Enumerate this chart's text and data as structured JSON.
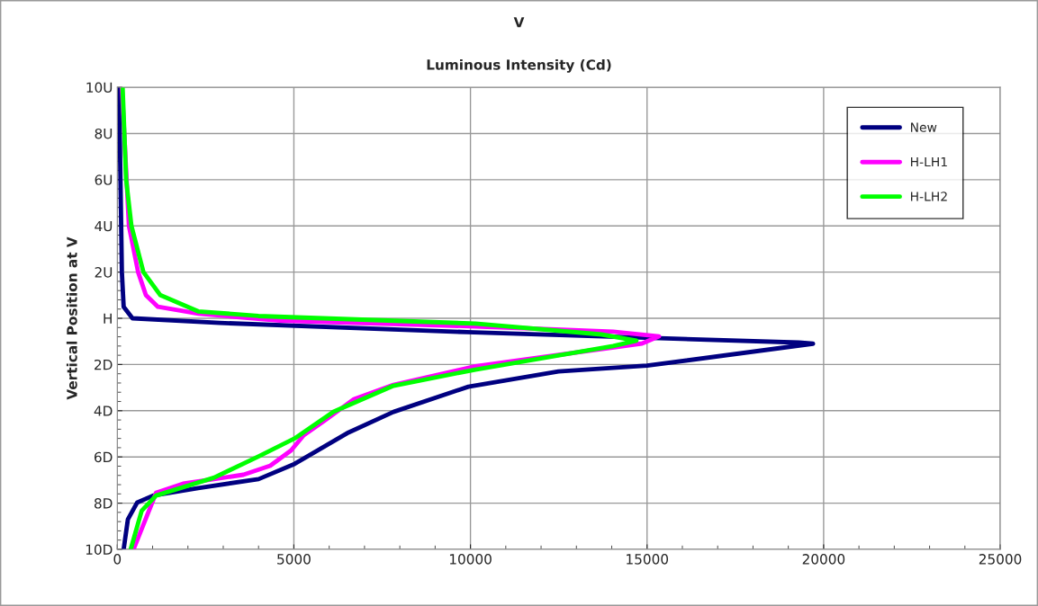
{
  "chart_data": {
    "type": "line",
    "title": "V",
    "subtitle": "Luminous Intensity (Cd)",
    "ylabel": "Vertical Position at V",
    "xlim": [
      0,
      25000
    ],
    "xticks": [
      0,
      5000,
      10000,
      15000,
      20000,
      25000
    ],
    "ylim": [
      -10,
      10
    ],
    "yticks": [
      {
        "value": 10,
        "label": "10U"
      },
      {
        "value": 8,
        "label": "8U"
      },
      {
        "value": 6,
        "label": "6U"
      },
      {
        "value": 4,
        "label": "4U"
      },
      {
        "value": 2,
        "label": "2U"
      },
      {
        "value": 0,
        "label": "H"
      },
      {
        "value": -2,
        "label": "2D"
      },
      {
        "value": -4,
        "label": "4D"
      },
      {
        "value": -6,
        "label": "6D"
      },
      {
        "value": -8,
        "label": "8D"
      },
      {
        "value": -10,
        "label": "10D"
      }
    ],
    "grid": true,
    "legend": "top right",
    "marker": "none",
    "line_style": "solid",
    "series": [
      {
        "name": "New",
        "color": "#000080",
        "x": [
          50,
          130,
          180,
          430,
          2900,
          9900,
          19300,
          19700,
          15000,
          12490,
          9940,
          7820,
          6550,
          5020,
          4000,
          2290,
          1020,
          560,
          300,
          180
        ],
        "values": [
          10,
          2,
          0.5,
          0,
          -0.2,
          -0.6,
          -1.05,
          -1.1,
          -2.05,
          -2.3,
          -2.96,
          -4.05,
          -4.94,
          -6.3,
          -6.96,
          -7.35,
          -7.67,
          -7.98,
          -8.7,
          -10
        ]
      },
      {
        "name": "H-LH1",
        "color": "#ff00ff",
        "x": [
          130,
          330,
          590,
          810,
          1150,
          2300,
          4600,
          10140,
          14040,
          15340,
          14860,
          10140,
          7820,
          6700,
          5860,
          5280,
          4920,
          4330,
          3570,
          1860,
          1100,
          460
        ],
        "values": [
          10,
          4,
          2,
          1,
          0.5,
          0.2,
          -0.1,
          -0.35,
          -0.58,
          -0.78,
          -1.09,
          -2.08,
          -2.88,
          -3.5,
          -4.44,
          -5.06,
          -5.72,
          -6.38,
          -6.77,
          -7.16,
          -7.55,
          -10
        ]
      },
      {
        "name": "H-LH2",
        "color": "#00ff00",
        "x": [
          150,
          250,
          400,
          740,
          1220,
          2290,
          4000,
          10140,
          13710,
          14700,
          14040,
          10140,
          7820,
          6120,
          5020,
          4000,
          2730,
          1100,
          690,
          380
        ],
        "values": [
          10,
          6,
          4,
          2,
          1,
          0.3,
          0.1,
          -0.23,
          -0.7,
          -0.97,
          -1.2,
          -2.22,
          -2.92,
          -4.05,
          -5.2,
          -5.98,
          -6.9,
          -7.67,
          -8.33,
          -10
        ]
      }
    ]
  }
}
